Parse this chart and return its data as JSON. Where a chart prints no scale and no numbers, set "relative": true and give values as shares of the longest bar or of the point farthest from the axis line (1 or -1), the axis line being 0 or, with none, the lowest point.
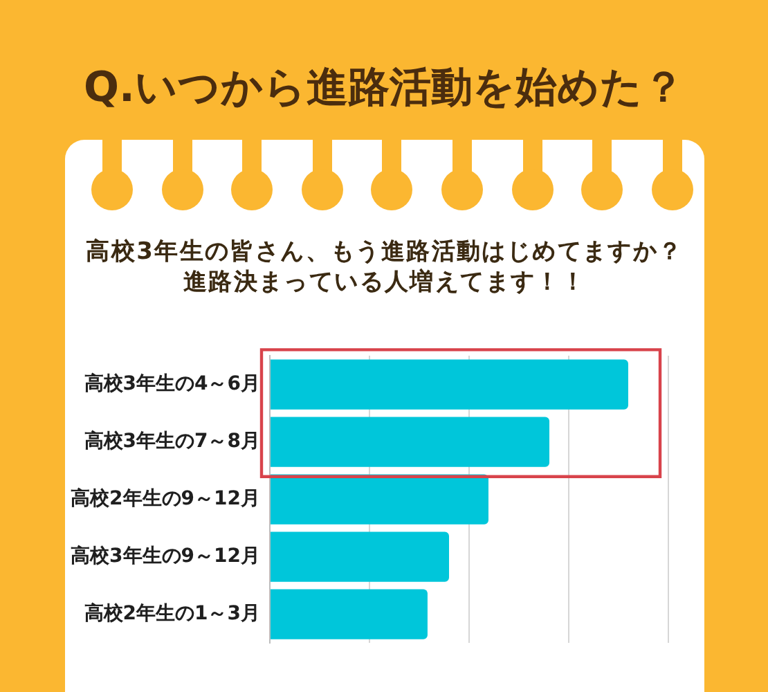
{
  "chart_data": {
    "type": "bar",
    "orientation": "horizontal",
    "relative": true,
    "title": "Q.いつから進路活動を始めた？",
    "subtitle": "高校3年生の皆さん、もう進路活動はじめてますか？進路決まっている人増えてます！！",
    "categories": [
      "高校3年生の4～6月",
      "高校3年生の7～8月",
      "高校2年生の9～12月",
      "高校3年生の9～12月",
      "高校2年生の1～3月"
    ],
    "values": [
      1,
      0.78,
      0.61,
      0.5,
      0.44
    ],
    "color": "#00c6da",
    "grid": "x",
    "tick_labels": "y"
  }
}
